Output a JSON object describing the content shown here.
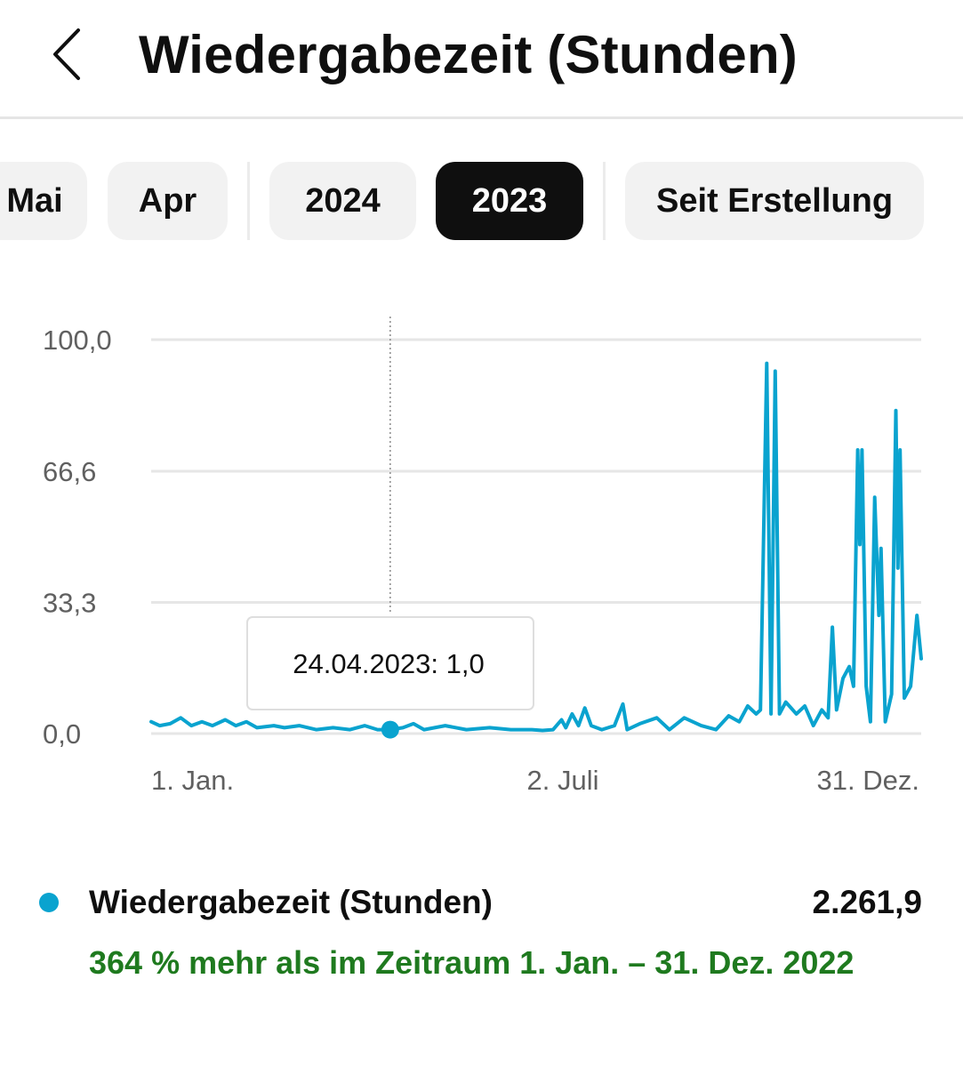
{
  "header": {
    "title": "Wiedergabezeit (Stunden)"
  },
  "icons": {
    "back": "chevron-left-icon"
  },
  "colors": {
    "series": "#0aa3cf",
    "positive_text": "#1f7a1f",
    "selected_chip_bg": "#0f0f0f",
    "chip_bg": "#f2f2f2",
    "gridline": "#e6e6e6"
  },
  "period_chips": [
    {
      "label": "Mai",
      "selected": false
    },
    {
      "label": "Apr",
      "selected": false
    },
    {
      "label": "2024",
      "selected": false
    },
    {
      "label": "2023",
      "selected": true
    },
    {
      "label": "Seit Erstellung",
      "selected": false
    }
  ],
  "chart_data": {
    "type": "line",
    "title": "",
    "xlabel": "",
    "ylabel": "",
    "x_ticks": [
      "1. Jan.",
      "2. Juli",
      "31. Dez."
    ],
    "y_ticks": [
      "100,0",
      "66,6",
      "33,3",
      "0,0"
    ],
    "y_tick_values": [
      100,
      66.6,
      33.3,
      0
    ],
    "ylim": [
      0,
      100
    ],
    "xlim": [
      "2023-01-01",
      "2023-12-31"
    ],
    "grid": true,
    "legend": "none",
    "tooltip": {
      "date": "2023-04-24",
      "value": 1.0,
      "label": "24.04.2023: 1,0"
    },
    "series": [
      {
        "name": "Wiedergabezeit (Stunden)",
        "points": [
          [
            "2023-01-01",
            3.0
          ],
          [
            "2023-01-05",
            2.0
          ],
          [
            "2023-01-10",
            2.5
          ],
          [
            "2023-01-15",
            4.0
          ],
          [
            "2023-01-20",
            2.0
          ],
          [
            "2023-01-25",
            3.0
          ],
          [
            "2023-01-30",
            2.0
          ],
          [
            "2023-02-05",
            3.5
          ],
          [
            "2023-02-10",
            2.0
          ],
          [
            "2023-02-15",
            3.0
          ],
          [
            "2023-02-20",
            1.5
          ],
          [
            "2023-02-28",
            2.0
          ],
          [
            "2023-03-05",
            1.5
          ],
          [
            "2023-03-12",
            2.0
          ],
          [
            "2023-03-20",
            1.0
          ],
          [
            "2023-03-28",
            1.5
          ],
          [
            "2023-04-05",
            1.0
          ],
          [
            "2023-04-12",
            2.0
          ],
          [
            "2023-04-18",
            1.0
          ],
          [
            "2023-04-24",
            1.0
          ],
          [
            "2023-04-30",
            1.5
          ],
          [
            "2023-05-05",
            2.5
          ],
          [
            "2023-05-10",
            1.0
          ],
          [
            "2023-05-20",
            2.0
          ],
          [
            "2023-05-30",
            1.0
          ],
          [
            "2023-06-10",
            1.5
          ],
          [
            "2023-06-20",
            1.0
          ],
          [
            "2023-06-30",
            1.0
          ],
          [
            "2023-07-05",
            0.8
          ],
          [
            "2023-07-10",
            1.0
          ],
          [
            "2023-07-14",
            3.5
          ],
          [
            "2023-07-16",
            1.5
          ],
          [
            "2023-07-19",
            5.0
          ],
          [
            "2023-07-22",
            2.0
          ],
          [
            "2023-07-25",
            6.5
          ],
          [
            "2023-07-28",
            2.0
          ],
          [
            "2023-08-02",
            1.0
          ],
          [
            "2023-08-08",
            2.0
          ],
          [
            "2023-08-12",
            7.5
          ],
          [
            "2023-08-14",
            1.0
          ],
          [
            "2023-08-20",
            2.5
          ],
          [
            "2023-08-28",
            4.0
          ],
          [
            "2023-09-03",
            1.0
          ],
          [
            "2023-09-10",
            4.0
          ],
          [
            "2023-09-18",
            2.0
          ],
          [
            "2023-09-25",
            1.0
          ],
          [
            "2023-10-01",
            4.5
          ],
          [
            "2023-10-06",
            3.0
          ],
          [
            "2023-10-10",
            7.0
          ],
          [
            "2023-10-14",
            5.0
          ],
          [
            "2023-10-16",
            6.0
          ],
          [
            "2023-10-19",
            94.0
          ],
          [
            "2023-10-21",
            5.0
          ],
          [
            "2023-10-23",
            92.0
          ],
          [
            "2023-10-25",
            5.0
          ],
          [
            "2023-10-28",
            8.0
          ],
          [
            "2023-11-02",
            5.0
          ],
          [
            "2023-11-06",
            7.0
          ],
          [
            "2023-11-10",
            2.0
          ],
          [
            "2023-11-14",
            6.0
          ],
          [
            "2023-11-17",
            4.0
          ],
          [
            "2023-11-19",
            27.0
          ],
          [
            "2023-11-21",
            6.0
          ],
          [
            "2023-11-24",
            14.0
          ],
          [
            "2023-11-27",
            17.0
          ],
          [
            "2023-11-29",
            12.0
          ],
          [
            "2023-12-01",
            72.0
          ],
          [
            "2023-12-02",
            48.0
          ],
          [
            "2023-12-03",
            72.0
          ],
          [
            "2023-12-05",
            12.0
          ],
          [
            "2023-12-07",
            3.0
          ],
          [
            "2023-12-09",
            60.0
          ],
          [
            "2023-12-11",
            30.0
          ],
          [
            "2023-12-12",
            47.0
          ],
          [
            "2023-12-14",
            3.0
          ],
          [
            "2023-12-17",
            10.0
          ],
          [
            "2023-12-19",
            82.0
          ],
          [
            "2023-12-20",
            42.0
          ],
          [
            "2023-12-21",
            72.0
          ],
          [
            "2023-12-23",
            9.0
          ],
          [
            "2023-12-26",
            12.0
          ],
          [
            "2023-12-29",
            30.0
          ],
          [
            "2023-12-31",
            19.0
          ]
        ]
      }
    ]
  },
  "summary": {
    "metric_label": "Wiedergabezeit (Stunden)",
    "metric_value": "2.261,9",
    "comparison_text": "364 % mehr als im Zeitraum 1. Jan. – 31. Dez. 2022"
  }
}
